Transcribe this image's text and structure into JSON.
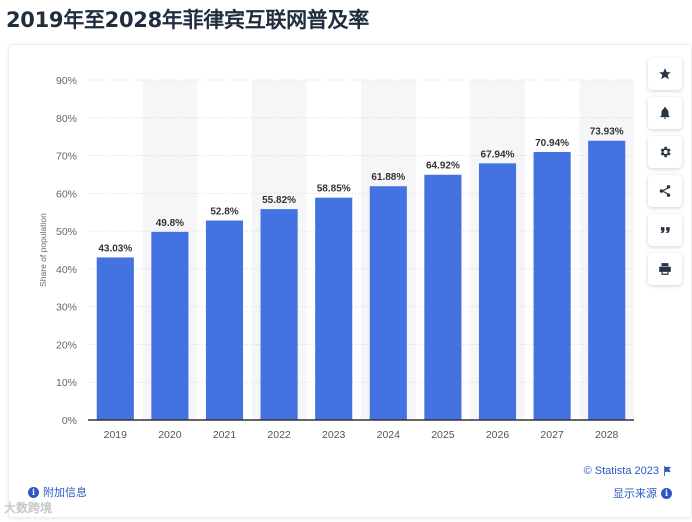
{
  "page": {
    "title": "2019年至2028年菲律宾互联网普及率"
  },
  "chart_data": {
    "type": "bar",
    "categories": [
      "2019",
      "2020",
      "2021",
      "2022",
      "2023",
      "2024",
      "2025",
      "2026",
      "2027",
      "2028"
    ],
    "values": [
      43.03,
      49.8,
      52.8,
      55.82,
      58.85,
      61.88,
      64.92,
      67.94,
      70.94,
      73.93
    ],
    "value_labels": [
      "43.03%",
      "49.8%",
      "52.8%",
      "55.82%",
      "58.85%",
      "61.88%",
      "64.92%",
      "67.94%",
      "70.94%",
      "73.93%"
    ],
    "ylabel": "Share of population",
    "xlabel": "",
    "ylim": [
      0,
      90
    ],
    "yticks": [
      "0%",
      "10%",
      "20%",
      "30%",
      "40%",
      "50%",
      "60%",
      "70%",
      "80%",
      "90%"
    ],
    "bar_color": "#4472e0",
    "grid": true,
    "alternating_column_shading": true
  },
  "toolbar": {
    "buttons": [
      {
        "name": "star-icon",
        "label": "★"
      },
      {
        "name": "bell-icon",
        "label": ""
      },
      {
        "name": "gear-icon",
        "label": ""
      },
      {
        "name": "share-icon",
        "label": ""
      },
      {
        "name": "quote-icon",
        "label": "❝"
      },
      {
        "name": "print-icon",
        "label": ""
      }
    ]
  },
  "footer": {
    "additional_info": "附加信息",
    "copyright": "© Statista 2023",
    "show_source": "显示来源",
    "watermark": "大数跨境"
  },
  "colors": {
    "link": "#2b59c3",
    "title": "#1f2d3d"
  }
}
